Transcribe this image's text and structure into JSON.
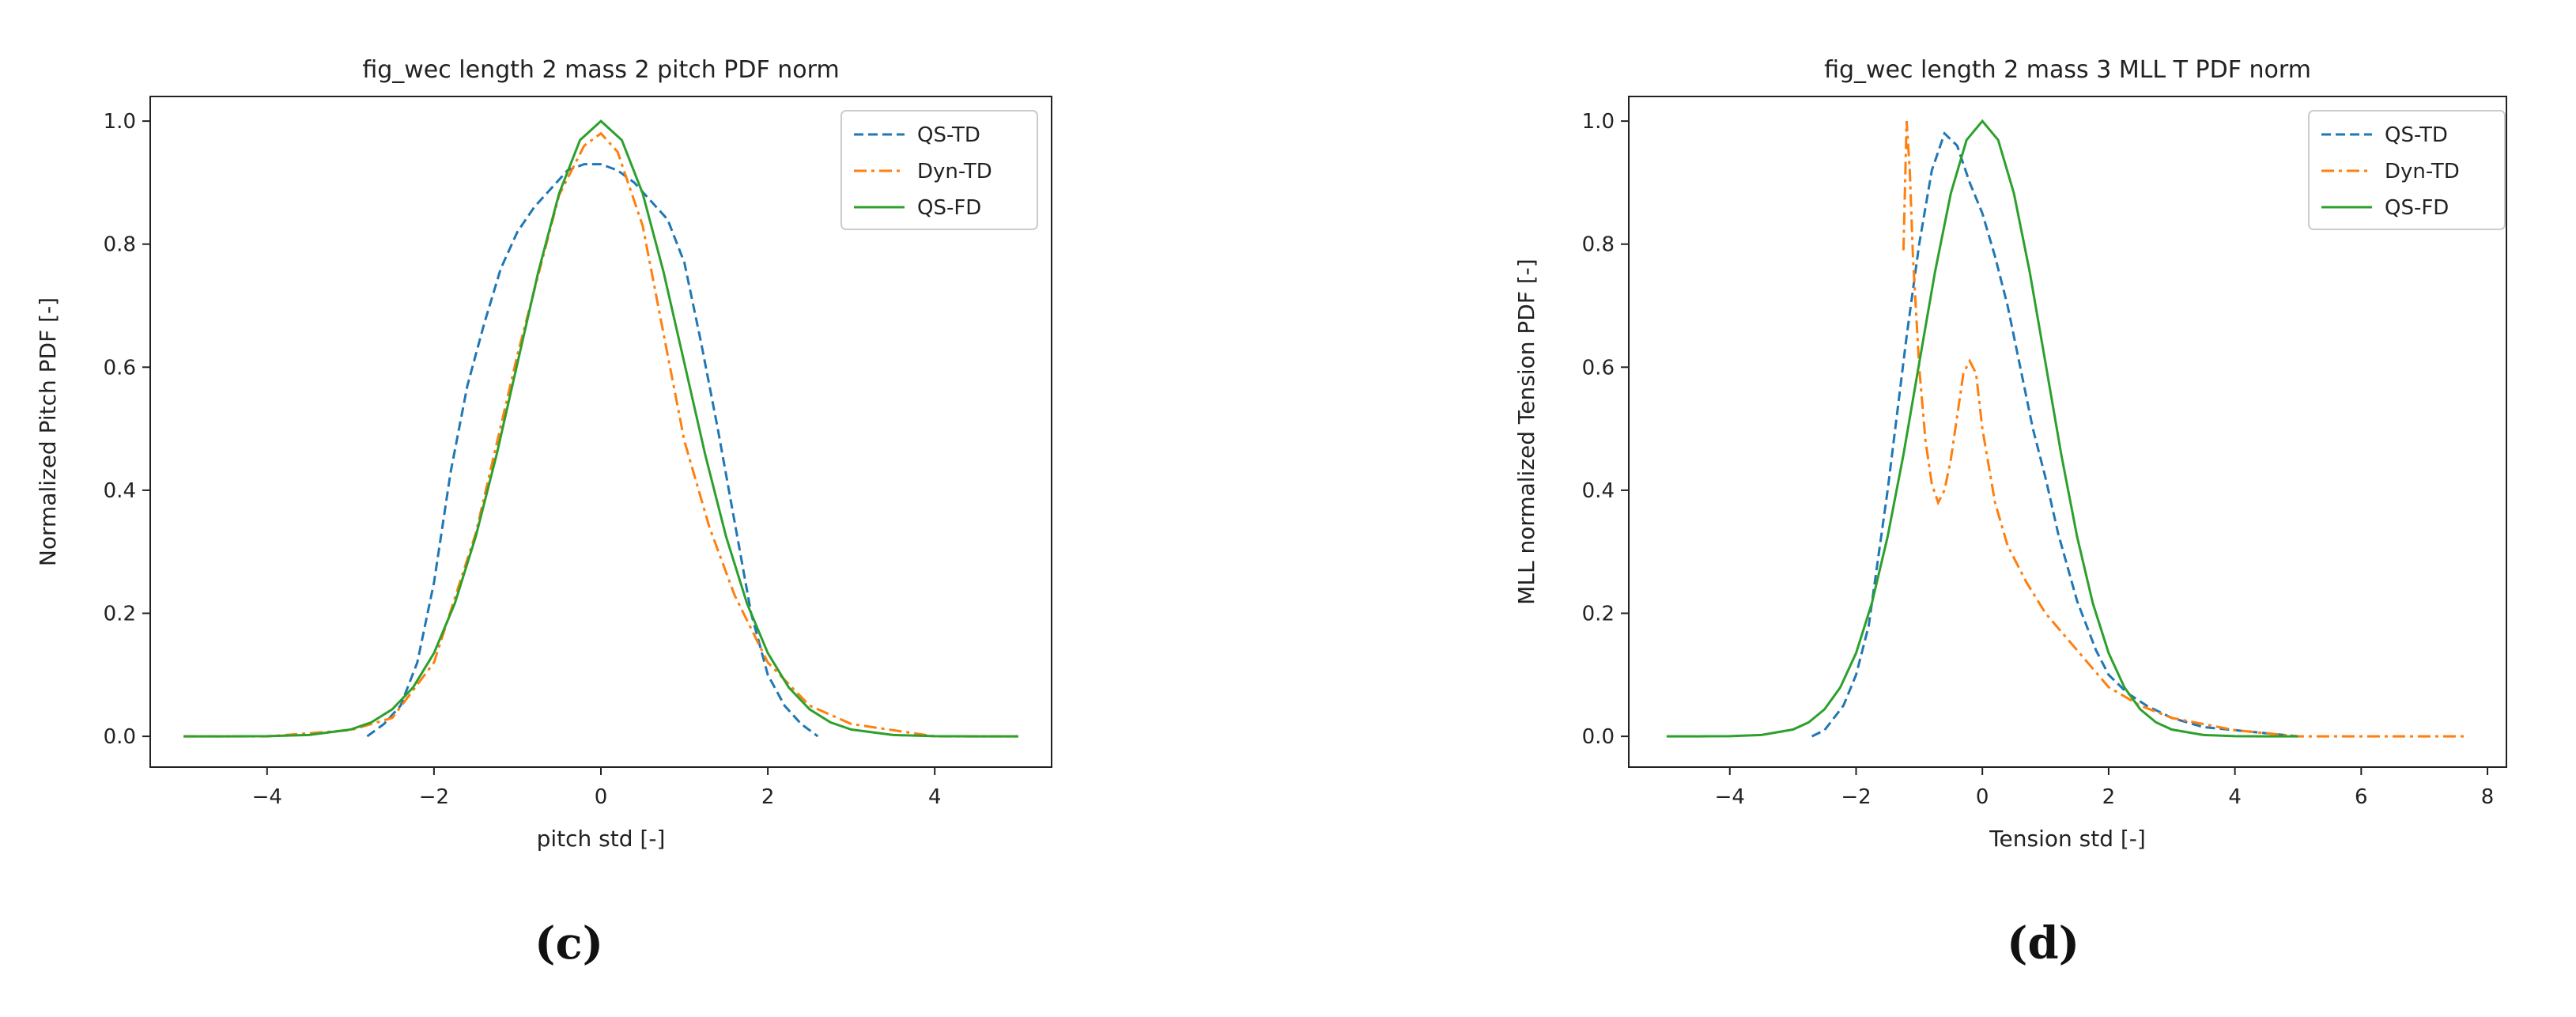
{
  "panel_labels": [
    "(c)",
    "(d)"
  ],
  "colors": {
    "qs_td": "#1f77b4",
    "dyn_td": "#ff7f0e",
    "qs_fd": "#2ca02c",
    "axes": "#222222"
  },
  "chart_data": [
    {
      "type": "line",
      "title": "fig_wec length 2 mass 2 pitch PDF norm",
      "xlabel": "pitch std [-]",
      "ylabel": "Normalized Pitch PDF [-]",
      "xlim": [
        -5.4,
        5.4
      ],
      "ylim": [
        -0.05,
        1.04
      ],
      "xticks": [
        -4,
        -2,
        0,
        2,
        4
      ],
      "xtick_labels": [
        "−4",
        "−2",
        "0",
        "2",
        "4"
      ],
      "yticks": [
        0.0,
        0.2,
        0.4,
        0.6,
        0.8,
        1.0
      ],
      "ytick_labels": [
        "0.0",
        "0.2",
        "0.4",
        "0.6",
        "0.8",
        "1.0"
      ],
      "grid": false,
      "legend": "top-right",
      "series": [
        {
          "name": "QS-TD",
          "style": "dashed",
          "x": [
            -2.8,
            -2.6,
            -2.4,
            -2.2,
            -2.0,
            -1.8,
            -1.6,
            -1.4,
            -1.2,
            -1.0,
            -0.8,
            -0.6,
            -0.4,
            -0.2,
            0.0,
            0.2,
            0.4,
            0.6,
            0.8,
            1.0,
            1.2,
            1.4,
            1.6,
            1.8,
            2.0,
            2.2,
            2.4,
            2.6
          ],
          "y": [
            0.0,
            0.02,
            0.05,
            0.12,
            0.25,
            0.43,
            0.57,
            0.67,
            0.76,
            0.82,
            0.86,
            0.89,
            0.92,
            0.93,
            0.93,
            0.92,
            0.9,
            0.87,
            0.84,
            0.77,
            0.64,
            0.5,
            0.35,
            0.2,
            0.1,
            0.05,
            0.02,
            0.0
          ]
        },
        {
          "name": "Dyn-TD",
          "style": "dashdot",
          "x": [
            -5.0,
            -4.0,
            -3.0,
            -2.5,
            -2.0,
            -1.5,
            -1.0,
            -0.5,
            -0.2,
            0.0,
            0.2,
            0.5,
            0.8,
            1.0,
            1.3,
            1.6,
            2.0,
            2.5,
            3.0,
            4.0,
            5.0
          ],
          "y": [
            0.0,
            0.0,
            0.01,
            0.03,
            0.12,
            0.33,
            0.62,
            0.88,
            0.96,
            0.98,
            0.95,
            0.83,
            0.62,
            0.48,
            0.34,
            0.23,
            0.12,
            0.05,
            0.02,
            0.0,
            0.0
          ]
        },
        {
          "name": "QS-FD",
          "style": "solid",
          "x": [
            -5.0,
            -4.5,
            -4.0,
            -3.5,
            -3.0,
            -2.75,
            -2.5,
            -2.25,
            -2.0,
            -1.75,
            -1.5,
            -1.25,
            -1.0,
            -0.75,
            -0.5,
            -0.25,
            0.0,
            0.25,
            0.5,
            0.75,
            1.0,
            1.25,
            1.5,
            1.75,
            2.0,
            2.25,
            2.5,
            2.75,
            3.0,
            3.5,
            4.0,
            4.5,
            5.0
          ],
          "y": [
            0.0,
            0.0,
            0.0003,
            0.0022,
            0.0111,
            0.0228,
            0.0439,
            0.0796,
            0.1353,
            0.2163,
            0.3247,
            0.4578,
            0.6065,
            0.7548,
            0.8825,
            0.9692,
            1.0,
            0.9692,
            0.8825,
            0.7548,
            0.6065,
            0.4578,
            0.3247,
            0.2163,
            0.1353,
            0.0796,
            0.0439,
            0.0228,
            0.0111,
            0.0022,
            0.0003,
            0.0,
            0.0
          ]
        }
      ]
    },
    {
      "type": "line",
      "title": "fig_wec length 2 mass 3 MLL T PDF norm",
      "xlabel": "Tension std [-]",
      "ylabel": "MLL normalized Tension PDF [-]",
      "xlim": [
        -5.6,
        8.3
      ],
      "ylim": [
        -0.05,
        1.04
      ],
      "xticks": [
        -4,
        -2,
        0,
        2,
        4,
        6,
        8
      ],
      "xtick_labels": [
        "−4",
        "−2",
        "0",
        "2",
        "4",
        "6",
        "8"
      ],
      "yticks": [
        0.0,
        0.2,
        0.4,
        0.6,
        0.8,
        1.0
      ],
      "ytick_labels": [
        "0.0",
        "0.2",
        "0.4",
        "0.6",
        "0.8",
        "1.0"
      ],
      "grid": false,
      "legend": "top-right",
      "series": [
        {
          "name": "QS-TD",
          "style": "dashed",
          "x": [
            -2.7,
            -2.5,
            -2.2,
            -2.0,
            -1.8,
            -1.5,
            -1.2,
            -1.0,
            -0.8,
            -0.6,
            -0.4,
            -0.2,
            0.0,
            0.2,
            0.4,
            0.6,
            0.8,
            1.0,
            1.2,
            1.5,
            1.8,
            2.0,
            2.3,
            2.6,
            3.0,
            3.5,
            4.0,
            4.5,
            5.0
          ],
          "y": [
            0.0,
            0.01,
            0.05,
            0.1,
            0.18,
            0.4,
            0.65,
            0.8,
            0.92,
            0.98,
            0.96,
            0.9,
            0.85,
            0.78,
            0.7,
            0.6,
            0.5,
            0.42,
            0.33,
            0.22,
            0.14,
            0.1,
            0.07,
            0.05,
            0.03,
            0.015,
            0.01,
            0.005,
            0.0
          ]
        },
        {
          "name": "Dyn-TD",
          "style": "dashdot",
          "x": [
            -1.25,
            -1.2,
            -1.15,
            -1.1,
            -1.0,
            -0.9,
            -0.8,
            -0.7,
            -0.6,
            -0.5,
            -0.4,
            -0.3,
            -0.2,
            -0.1,
            0.0,
            0.2,
            0.4,
            0.7,
            1.0,
            1.5,
            2.0,
            2.5,
            3.0,
            4.0,
            5.0,
            6.0,
            7.0,
            7.7
          ],
          "y": [
            0.79,
            1.0,
            0.92,
            0.78,
            0.6,
            0.48,
            0.41,
            0.38,
            0.4,
            0.45,
            0.52,
            0.59,
            0.61,
            0.59,
            0.5,
            0.38,
            0.31,
            0.25,
            0.2,
            0.14,
            0.08,
            0.05,
            0.03,
            0.01,
            0.0,
            0.0,
            0.0,
            0.0
          ]
        },
        {
          "name": "QS-FD",
          "style": "solid",
          "x": [
            -5.0,
            -4.5,
            -4.0,
            -3.5,
            -3.0,
            -2.75,
            -2.5,
            -2.25,
            -2.0,
            -1.75,
            -1.5,
            -1.25,
            -1.0,
            -0.75,
            -0.5,
            -0.25,
            0.0,
            0.25,
            0.5,
            0.75,
            1.0,
            1.25,
            1.5,
            1.75,
            2.0,
            2.25,
            2.5,
            2.75,
            3.0,
            3.5,
            4.0,
            4.5,
            5.0
          ],
          "y": [
            0.0,
            0.0,
            0.0003,
            0.0022,
            0.0111,
            0.0228,
            0.0439,
            0.0796,
            0.1353,
            0.2163,
            0.3247,
            0.4578,
            0.6065,
            0.7548,
            0.8825,
            0.9692,
            1.0,
            0.9692,
            0.8825,
            0.7548,
            0.6065,
            0.4578,
            0.3247,
            0.2163,
            0.1353,
            0.0796,
            0.0439,
            0.0228,
            0.0111,
            0.0022,
            0.0003,
            0.0,
            0.0
          ]
        }
      ]
    }
  ]
}
